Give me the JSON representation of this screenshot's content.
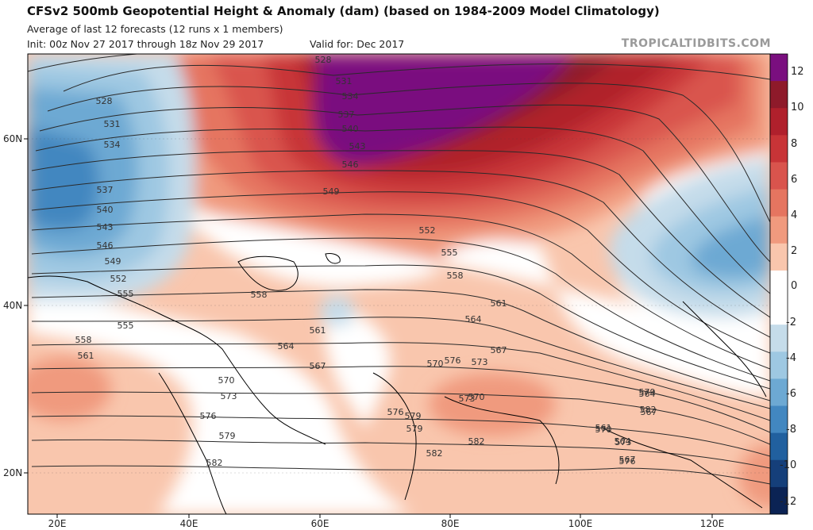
{
  "header": {
    "title": "CFSv2 500mb Geopotential Height & Anomaly (dam) (based on 1984-2009 Model Climatology)",
    "subtitle": "Average of last 12 forecasts (12 runs x 1 members)",
    "init": "Init: 00z Nov 27 2017 through 18z Nov 29 2017",
    "valid": "Valid for: Dec 2017",
    "brand": "TROPICALTIDBITS.COM"
  },
  "axes": {
    "lat_labels": [
      "60N",
      "40N",
      "20N"
    ],
    "lon_labels": [
      "20E",
      "40E",
      "60E",
      "80E",
      "100E",
      "120E"
    ]
  },
  "colorbar": {
    "ticks": [
      "12",
      "10",
      "8",
      "6",
      "4",
      "2",
      "0",
      "-2",
      "-4",
      "-6",
      "-8",
      "-10",
      "-12"
    ],
    "colors": [
      "#7a0f7f",
      "#8e1a2a",
      "#b0202c",
      "#c83437",
      "#d9544d",
      "#e57560",
      "#f09a7e",
      "#f9c6ad",
      "#ffffff",
      "#ffffff",
      "#c5dcea",
      "#9ec8e2",
      "#6da9d3",
      "#4287c0",
      "#21609f",
      "#153f7a",
      "#0b2354"
    ]
  },
  "contour_labels": [
    {
      "text": "528"
    },
    {
      "text": "531"
    },
    {
      "text": "534"
    },
    {
      "text": "537"
    },
    {
      "text": "540"
    },
    {
      "text": "543"
    },
    {
      "text": "546"
    },
    {
      "text": "549"
    },
    {
      "text": "552"
    },
    {
      "text": "555"
    },
    {
      "text": "558"
    },
    {
      "text": "561"
    },
    {
      "text": "564"
    },
    {
      "text": "567"
    },
    {
      "text": "570"
    },
    {
      "text": "573"
    },
    {
      "text": "576"
    },
    {
      "text": "579"
    },
    {
      "text": "582"
    },
    {
      "text": "528"
    },
    {
      "text": "531"
    },
    {
      "text": "534"
    },
    {
      "text": "537"
    },
    {
      "text": "540"
    },
    {
      "text": "543"
    },
    {
      "text": "546"
    },
    {
      "text": "549"
    },
    {
      "text": "552"
    },
    {
      "text": "555"
    },
    {
      "text": "558"
    },
    {
      "text": "561"
    },
    {
      "text": "564"
    },
    {
      "text": "567"
    },
    {
      "text": "570"
    },
    {
      "text": "573"
    },
    {
      "text": "576"
    },
    {
      "text": "579"
    },
    {
      "text": "582"
    },
    {
      "text": "555"
    },
    {
      "text": "558"
    },
    {
      "text": "561"
    },
    {
      "text": "564"
    },
    {
      "text": "567"
    },
    {
      "text": "570"
    },
    {
      "text": "573"
    },
    {
      "text": "576"
    },
    {
      "text": "579"
    },
    {
      "text": "582"
    },
    {
      "text": "561"
    },
    {
      "text": "564"
    },
    {
      "text": "567"
    },
    {
      "text": "570"
    },
    {
      "text": "573"
    },
    {
      "text": "576"
    },
    {
      "text": "579"
    },
    {
      "text": "582"
    }
  ]
}
